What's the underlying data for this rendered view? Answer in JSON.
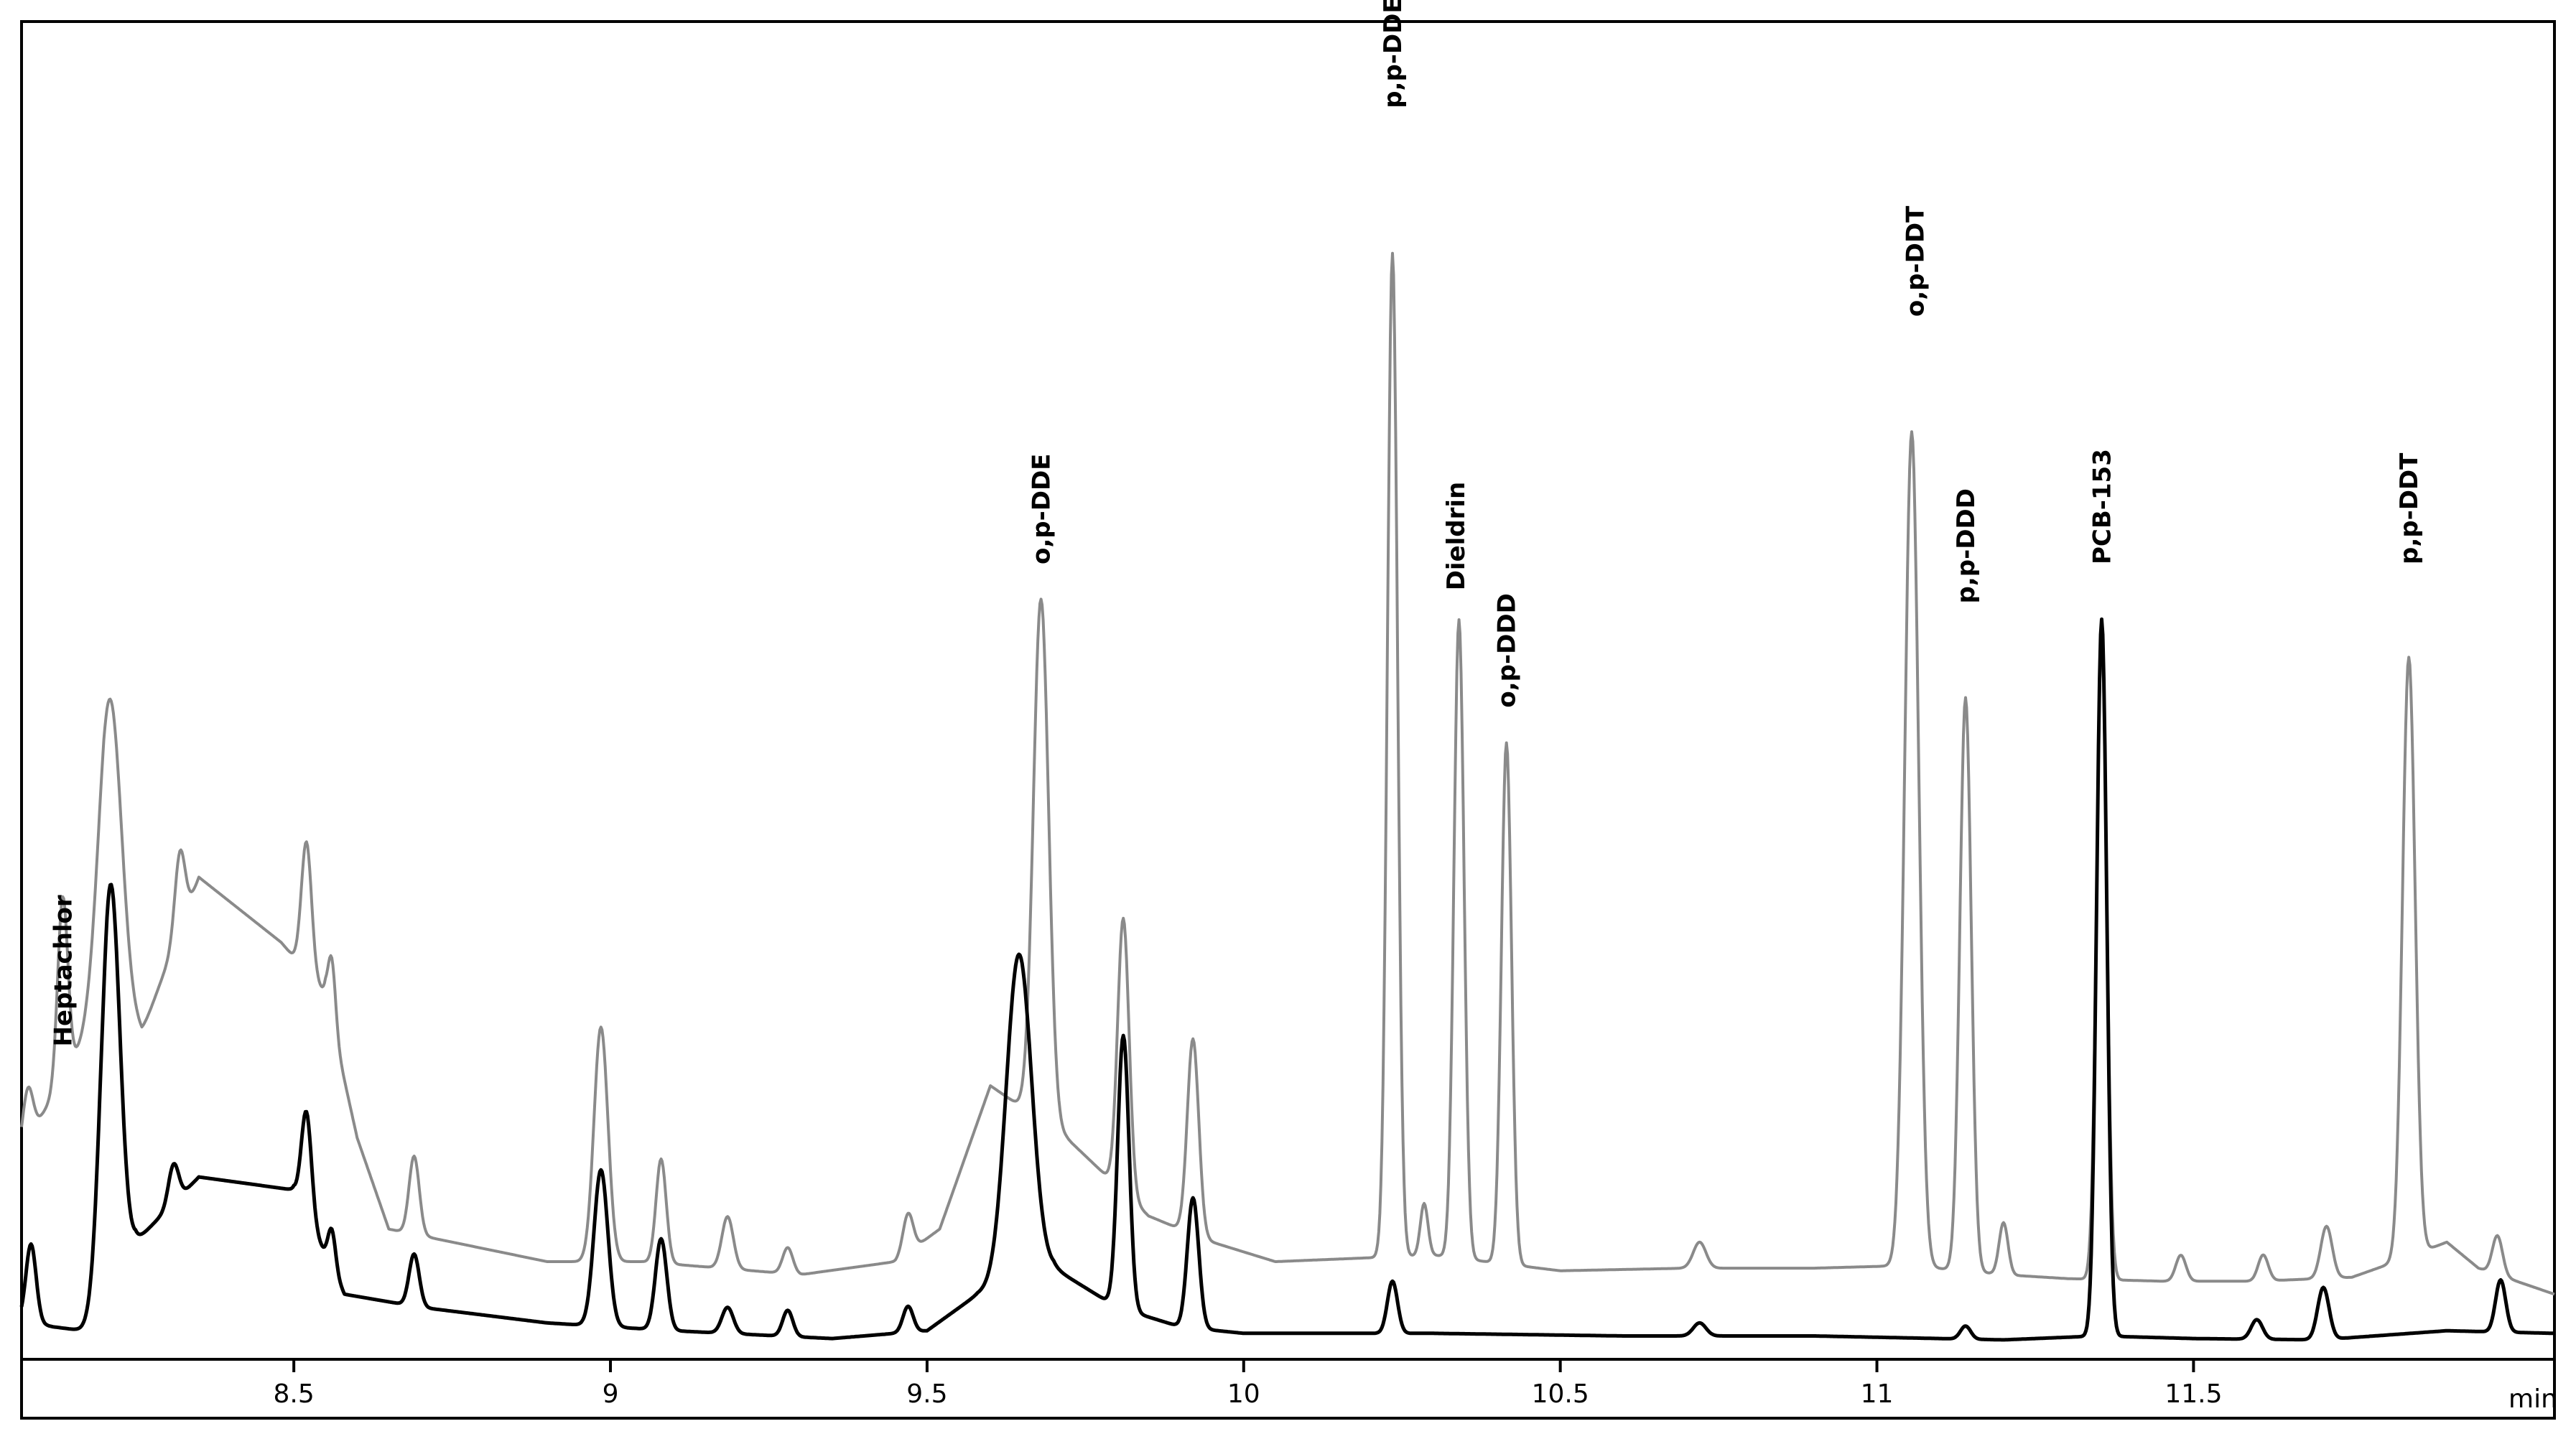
{
  "chart_data": {
    "type": "line",
    "xlabel": "min",
    "ylabel": "",
    "xlim": [
      8.07,
      12.07
    ],
    "ylim": [
      0,
      100
    ],
    "grid": false,
    "x_ticks": [
      {
        "value": 8.5,
        "label": "8.5"
      },
      {
        "value": 9,
        "label": "9"
      },
      {
        "value": 9.5,
        "label": "9.5"
      },
      {
        "value": 10,
        "label": "10"
      },
      {
        "value": 10.5,
        "label": "10.5"
      },
      {
        "value": 11,
        "label": "11"
      },
      {
        "value": 11.5,
        "label": "11.5"
      }
    ],
    "series": [
      {
        "color": "#8a8a8a",
        "baseline": [
          [
            8.07,
            15
          ],
          [
            8.2,
            26
          ],
          [
            8.26,
            24
          ],
          [
            8.35,
            36
          ],
          [
            8.48,
            31
          ],
          [
            8.55,
            27
          ],
          [
            8.6,
            16
          ],
          [
            8.65,
            9
          ],
          [
            8.75,
            8
          ],
          [
            8.9,
            6.5
          ],
          [
            9.05,
            6.5
          ],
          [
            9.3,
            5.5
          ],
          [
            9.45,
            6.5
          ],
          [
            9.52,
            9
          ],
          [
            9.6,
            20
          ],
          [
            9.72,
            16
          ],
          [
            9.85,
            10
          ],
          [
            9.95,
            8
          ],
          [
            10.05,
            6.5
          ],
          [
            10.3,
            7
          ],
          [
            10.5,
            5.8
          ],
          [
            10.7,
            6
          ],
          [
            10.9,
            6
          ],
          [
            11.05,
            6.2
          ],
          [
            11.2,
            5.5
          ],
          [
            11.3,
            5.2
          ],
          [
            11.45,
            5
          ],
          [
            11.6,
            5
          ],
          [
            11.75,
            5.3
          ],
          [
            11.82,
            6.5
          ],
          [
            11.9,
            8
          ],
          [
            11.95,
            6
          ],
          [
            12.07,
            4
          ]
        ],
        "peaks": [
          [
            8.08,
            4,
            0.008
          ],
          [
            8.135,
            14,
            0.008
          ],
          [
            8.21,
            24,
            0.018
          ],
          [
            8.32,
            6,
            0.008
          ],
          [
            8.52,
            10,
            0.008
          ],
          [
            8.56,
            5,
            0.006
          ],
          [
            8.69,
            6,
            0.008
          ],
          [
            8.985,
            18,
            0.011
          ],
          [
            9.08,
            8,
            0.008
          ],
          [
            9.185,
            4,
            0.009
          ],
          [
            9.28,
            2,
            0.008
          ],
          [
            9.47,
            3,
            0.008
          ],
          [
            9.68,
            40,
            0.012
          ],
          [
            9.81,
            21,
            0.009
          ],
          [
            9.92,
            15,
            0.009
          ],
          [
            10.235,
            77,
            0.008
          ],
          [
            10.285,
            4,
            0.006
          ],
          [
            10.34,
            49,
            0.008
          ],
          [
            10.415,
            40,
            0.008
          ],
          [
            10.72,
            2,
            0.01
          ],
          [
            11.055,
            64,
            0.011
          ],
          [
            11.14,
            44,
            0.009
          ],
          [
            11.2,
            4,
            0.007
          ],
          [
            11.355,
            49,
            0.008
          ],
          [
            11.48,
            2,
            0.008
          ],
          [
            11.61,
            2,
            0.008
          ],
          [
            11.71,
            4,
            0.009
          ],
          [
            11.84,
            46,
            0.01
          ],
          [
            11.98,
            3,
            0.008
          ]
        ]
      },
      {
        "color": "#000000",
        "baseline": [
          [
            8.07,
            2
          ],
          [
            8.12,
            1.5
          ],
          [
            8.2,
            1
          ],
          [
            8.25,
            8
          ],
          [
            8.35,
            13
          ],
          [
            8.5,
            12
          ],
          [
            8.58,
            4
          ],
          [
            8.7,
            3
          ],
          [
            8.9,
            1.8
          ],
          [
            9.1,
            1.2
          ],
          [
            9.35,
            0.6
          ],
          [
            9.5,
            1.2
          ],
          [
            9.58,
            4
          ],
          [
            9.7,
            6
          ],
          [
            9.8,
            3
          ],
          [
            9.9,
            1.5
          ],
          [
            10.0,
            1
          ],
          [
            10.3,
            1
          ],
          [
            10.6,
            0.8
          ],
          [
            10.9,
            0.8
          ],
          [
            11.2,
            0.5
          ],
          [
            11.35,
            0.8
          ],
          [
            11.5,
            0.6
          ],
          [
            11.7,
            0.5
          ],
          [
            11.9,
            1.2
          ],
          [
            12.07,
            1
          ]
        ],
        "peaks": [
          [
            8.085,
            6,
            0.008
          ],
          [
            8.21,
            33,
            0.015
          ],
          [
            8.31,
            3,
            0.008
          ],
          [
            8.52,
            8,
            0.008
          ],
          [
            8.56,
            3,
            0.006
          ],
          [
            8.69,
            4,
            0.008
          ],
          [
            8.985,
            12,
            0.011
          ],
          [
            9.08,
            7,
            0.009
          ],
          [
            9.185,
            2,
            0.009
          ],
          [
            9.28,
            2,
            0.008
          ],
          [
            9.47,
            2,
            0.008
          ],
          [
            9.645,
            25,
            0.02
          ],
          [
            9.81,
            21,
            0.009
          ],
          [
            9.92,
            10,
            0.009
          ],
          [
            10.235,
            4,
            0.008
          ],
          [
            10.72,
            1,
            0.01
          ],
          [
            11.14,
            1,
            0.008
          ],
          [
            11.355,
            55,
            0.008
          ],
          [
            11.6,
            1.5,
            0.009
          ],
          [
            11.705,
            4,
            0.009
          ],
          [
            11.985,
            4,
            0.008
          ]
        ]
      }
    ],
    "annotations": [
      {
        "text": "Heptachlor",
        "x": 8.135,
        "y": 23
      },
      {
        "text": "o,p-DDE",
        "x": 9.68,
        "y": 60
      },
      {
        "text": "p,p-DDE",
        "x": 10.235,
        "y": 95
      },
      {
        "text": "Dieldrin",
        "x": 10.335,
        "y": 58
      },
      {
        "text": "o,p-DDD",
        "x": 10.415,
        "y": 49
      },
      {
        "text": "o,p-DDT",
        "x": 11.06,
        "y": 79
      },
      {
        "text": "p,p-DDD",
        "x": 11.14,
        "y": 57
      },
      {
        "text": "PCB-153",
        "x": 11.355,
        "y": 60
      },
      {
        "text": "p,p-DDT",
        "x": 11.84,
        "y": 60
      }
    ]
  }
}
